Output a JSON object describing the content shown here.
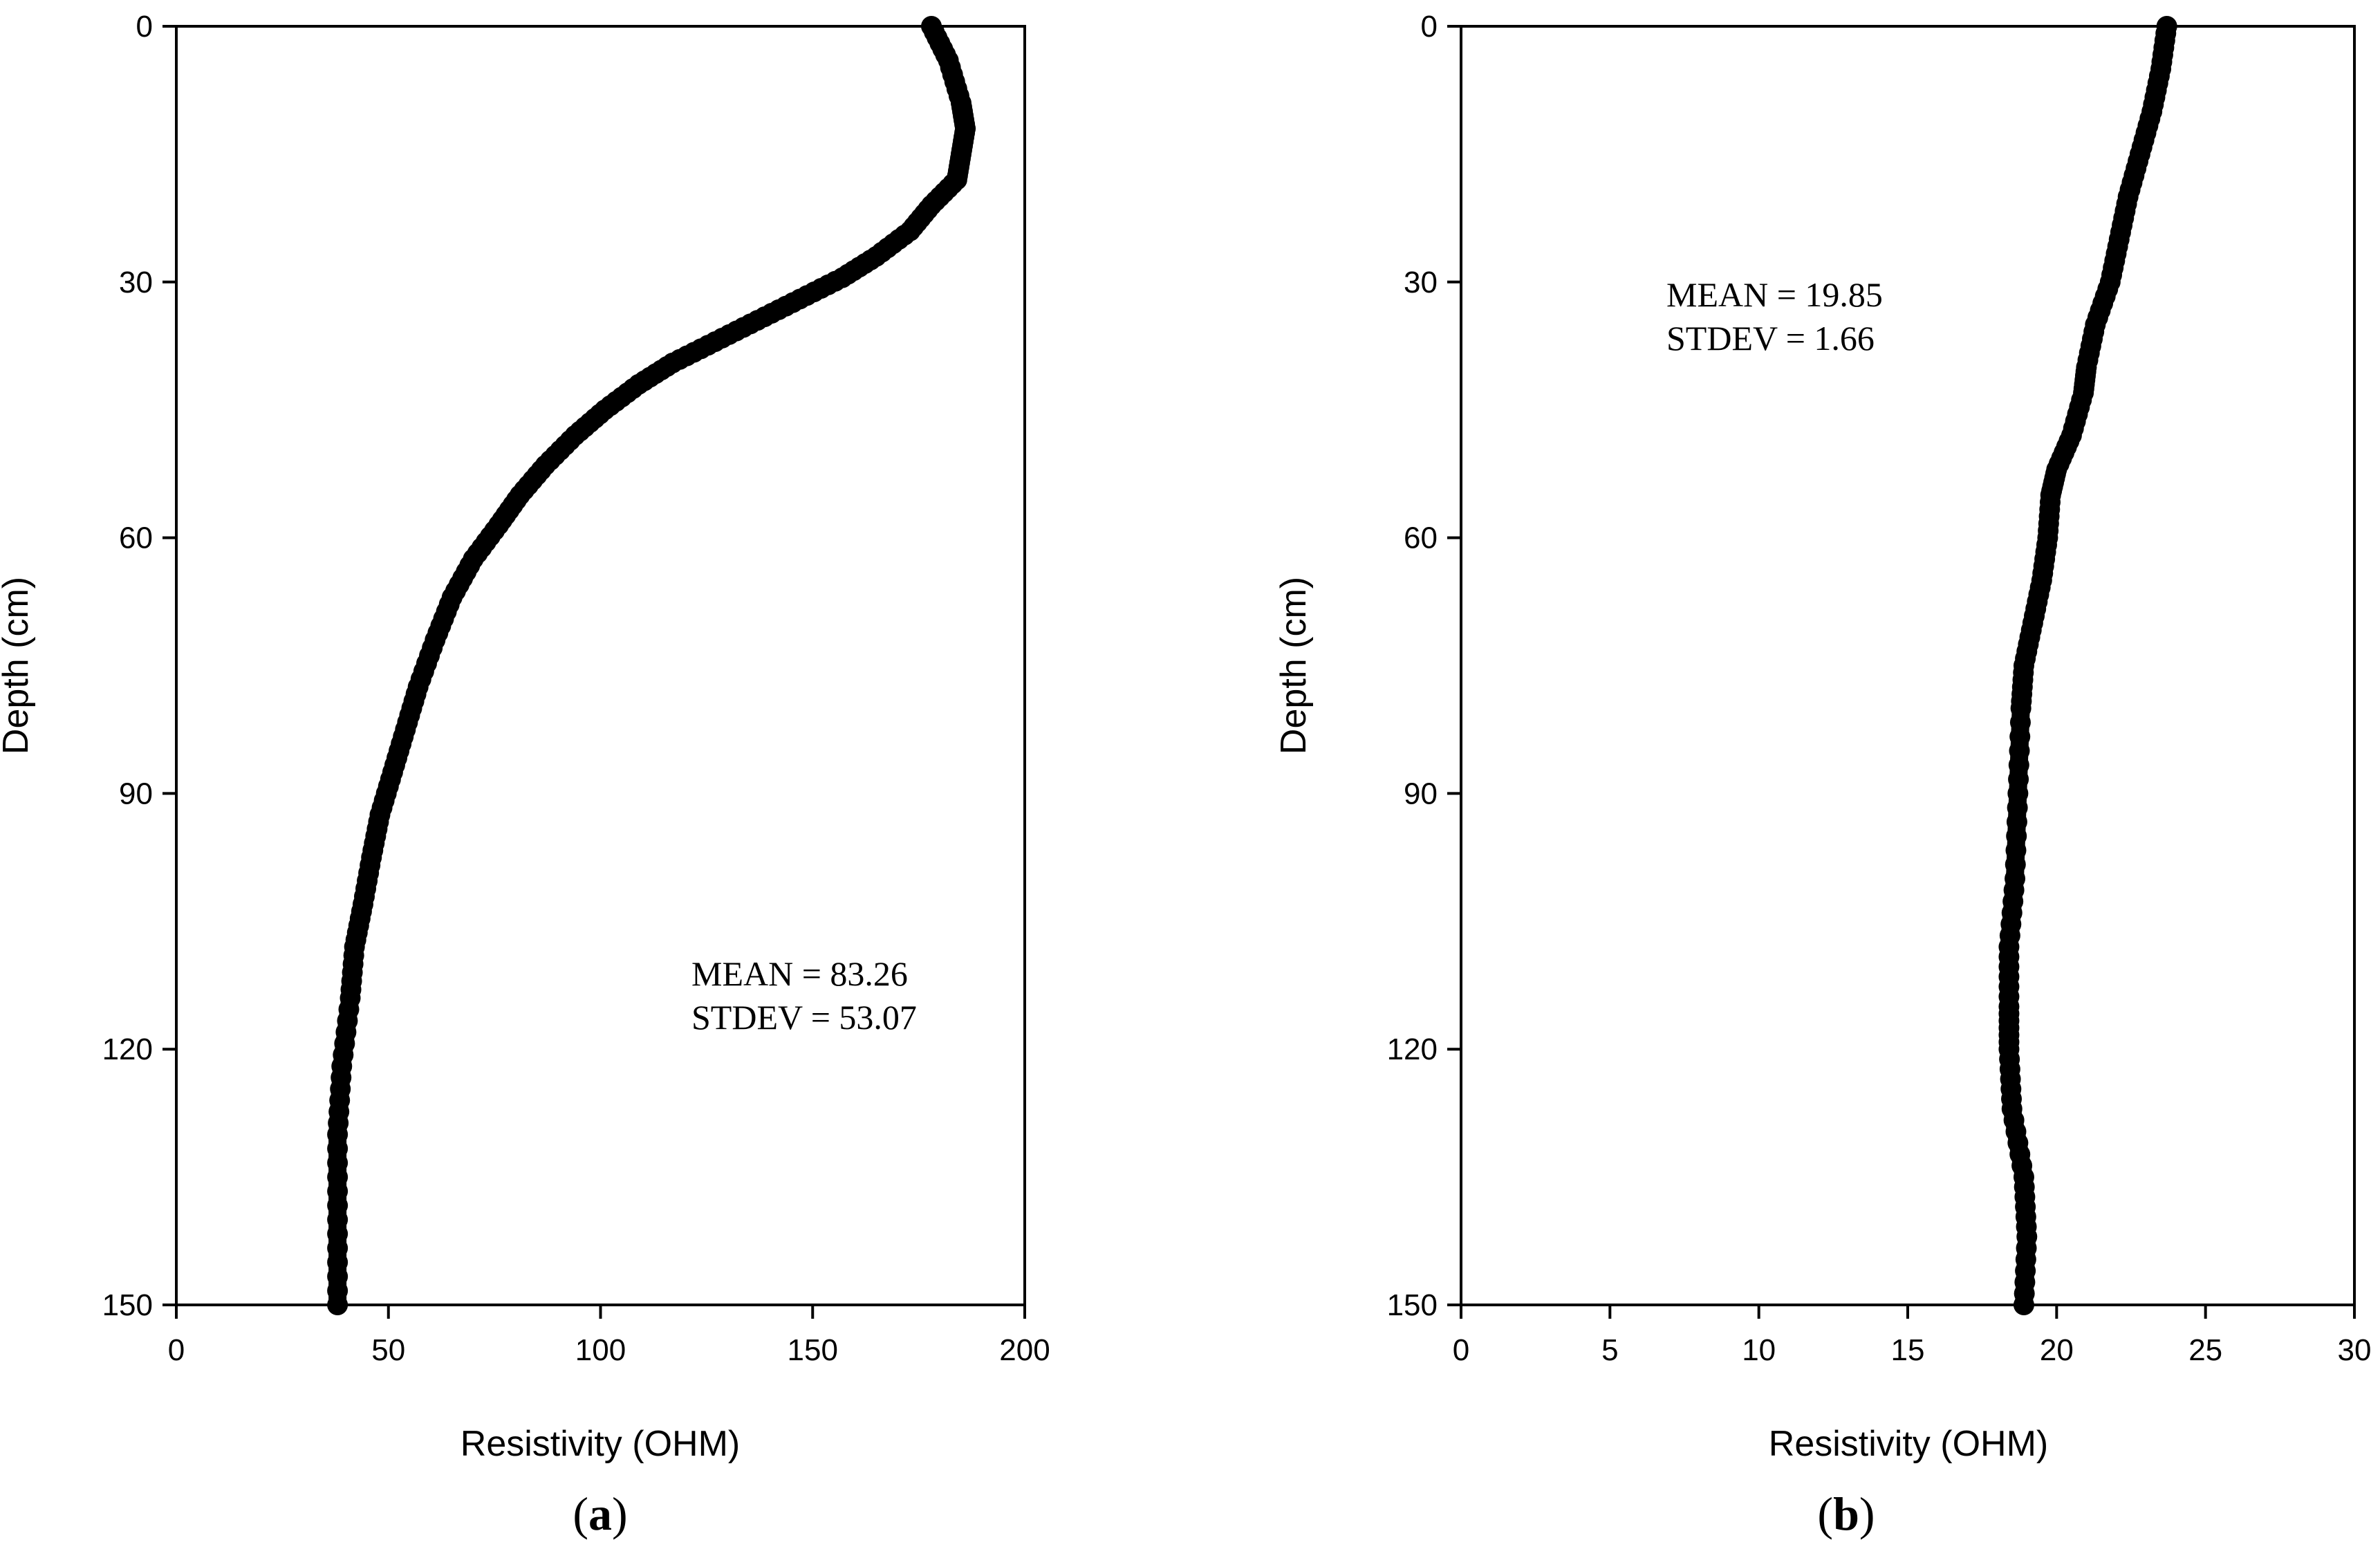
{
  "chart_data": [
    {
      "type": "line",
      "panel_label": "a",
      "xlabel": "Resistivity (OHM)",
      "ylabel": "Depth (cm)",
      "xlim": [
        0,
        200
      ],
      "ylim": [
        0,
        150
      ],
      "y_inverted": true,
      "xticks": [
        0,
        50,
        100,
        150,
        200
      ],
      "yticks": [
        0,
        30,
        60,
        90,
        120,
        150
      ],
      "grid": false,
      "annotations": [
        "MEAN = 83.26",
        "STDEV = 53.07"
      ],
      "series": [
        {
          "x": [
            178,
            182,
            185,
            186,
            185,
            184,
            178,
            173,
            165,
            157,
            147,
            137,
            127,
            117,
            109,
            101,
            94,
            87,
            81,
            76,
            70,
            65,
            61,
            57,
            54,
            51,
            48,
            46,
            44,
            42,
            41,
            39,
            38,
            38,
            38
          ],
          "y": [
            0,
            4,
            9,
            12,
            15,
            18,
            21,
            24,
            27,
            29.5,
            32,
            34.5,
            37,
            39.5,
            42,
            45,
            48,
            51.5,
            55,
            58.5,
            62.5,
            67,
            72,
            77.5,
            82.5,
            87.5,
            92.5,
            97.5,
            103,
            108,
            114,
            122,
            130,
            140,
            150
          ]
        }
      ]
    },
    {
      "type": "line",
      "panel_label": "b",
      "xlabel": "Resistivity (OHM)",
      "ylabel": "Depth (cm)",
      "xlim": [
        0,
        30
      ],
      "ylim": [
        0,
        150
      ],
      "y_inverted": true,
      "xticks": [
        0,
        5,
        10,
        15,
        20,
        25,
        30
      ],
      "yticks": [
        0,
        30,
        60,
        90,
        120,
        150
      ],
      "grid": false,
      "annotations": [
        "MEAN = 19.85",
        "STDEV = 1.66"
      ],
      "series": [
        {
          "x": [
            23.7,
            23.5,
            23.2,
            22.8,
            22.4,
            22.1,
            21.8,
            21.3,
            21.0,
            20.9,
            20.5,
            20.0,
            19.8,
            19.7,
            19.5,
            19.2,
            18.9,
            18.8,
            18.7,
            18.6,
            18.4,
            18.4,
            18.4,
            18.5,
            18.9,
            19.0,
            18.9
          ],
          "y": [
            0,
            5,
            10,
            15,
            20,
            25,
            30,
            35,
            40,
            43,
            48,
            52,
            55,
            60,
            65,
            70,
            75,
            80,
            90,
            100,
            108,
            115,
            120,
            127,
            135,
            142,
            150
          ]
        }
      ]
    }
  ]
}
